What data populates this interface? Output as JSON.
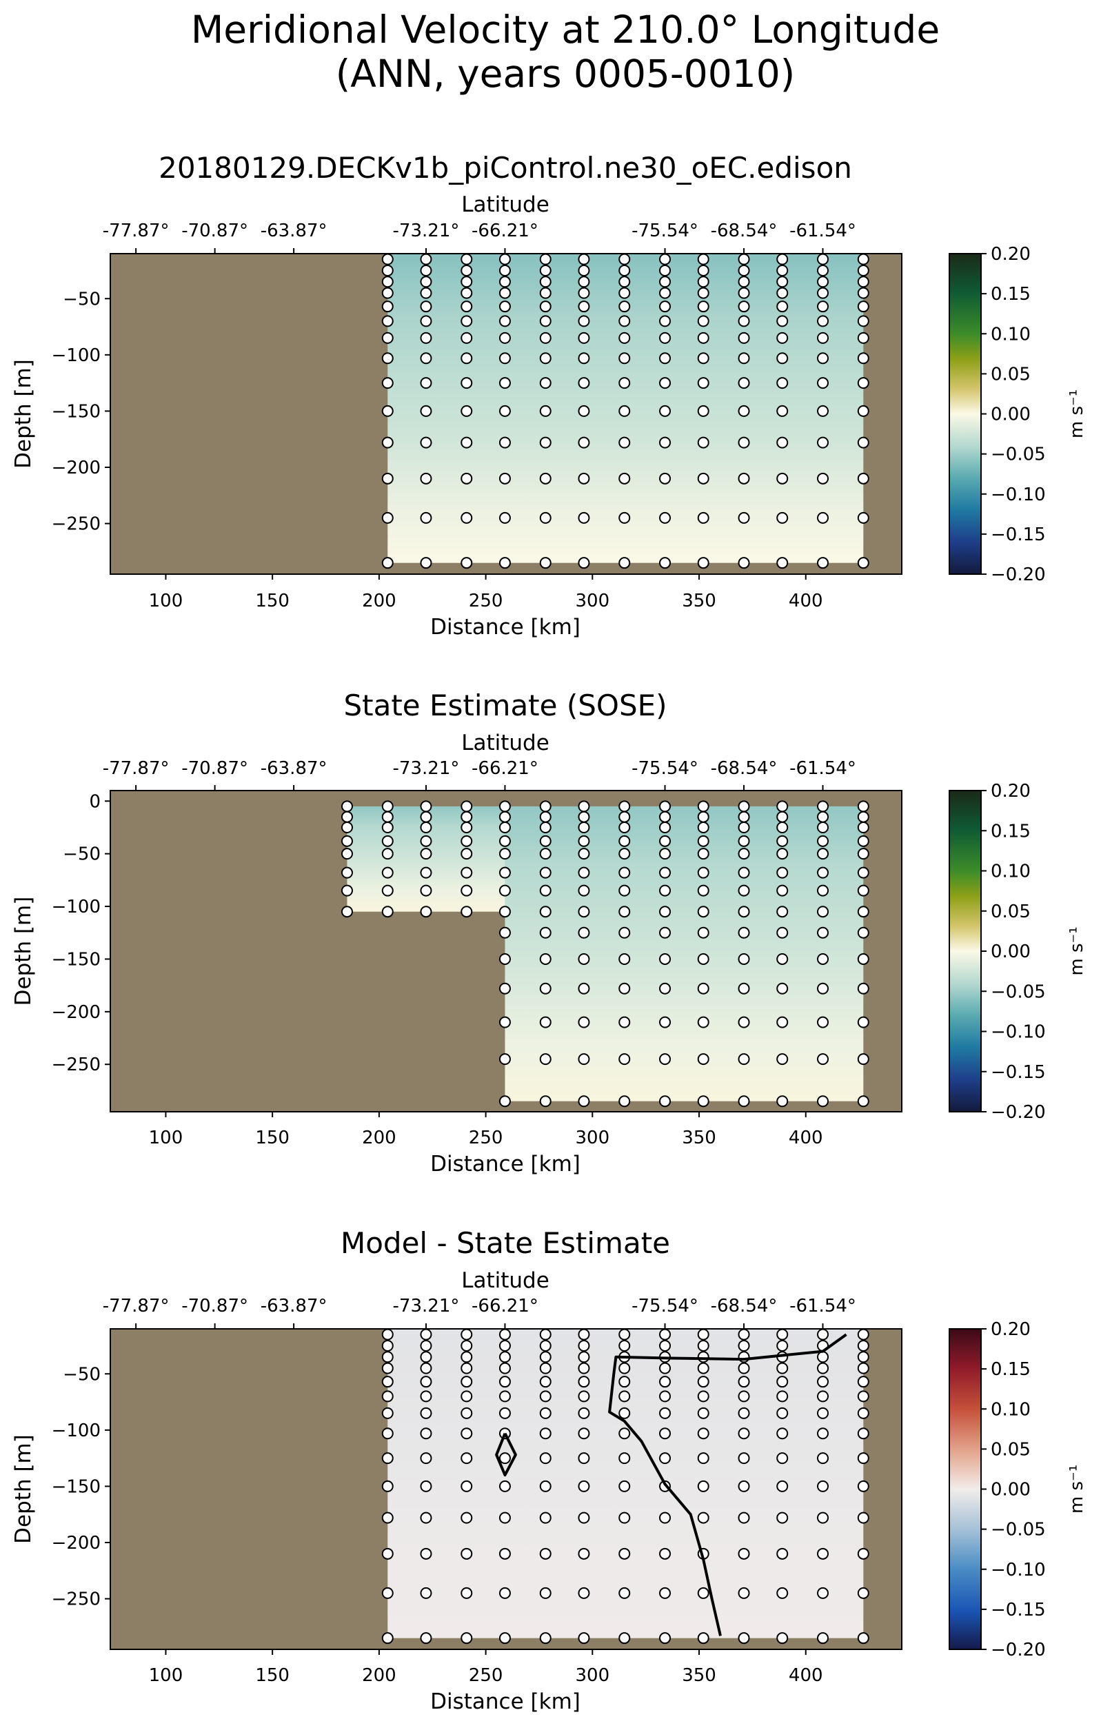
{
  "figure": {
    "title_line1": "Meridional Velocity at 210.0° Longitude",
    "title_line2": "(ANN, years 0005-0010)"
  },
  "colors": {
    "land": "#8c7f66",
    "marker_fill": "#ffffff",
    "marker_stroke": "#000000"
  },
  "chart_data": [
    {
      "type": "heatmap",
      "title": "20180129.DECKv1b_piControl.ne30_oEC.edison",
      "xlabel": "Distance [km]",
      "ylabel": "Depth [m]",
      "top_axis_label": "Latitude",
      "xlim": [
        74,
        445
      ],
      "ylim": [
        -295,
        -10
      ],
      "x_ticks": [
        100,
        150,
        200,
        250,
        300,
        350,
        400
      ],
      "y_ticks": [
        -50,
        -100,
        -150,
        -200,
        -250
      ],
      "top_ticks": [
        {
          "x": 86,
          "label": "-77.87°"
        },
        {
          "x": 123,
          "label": "-70.87°"
        },
        {
          "x": 160,
          "label": "-63.87°"
        },
        {
          "x": 222,
          "label": "-73.21°"
        },
        {
          "x": 259,
          "label": "-66.21°"
        },
        {
          "x": 334,
          "label": "-75.54°"
        },
        {
          "x": 371,
          "label": "-68.54°"
        },
        {
          "x": 408,
          "label": "-61.54°"
        }
      ],
      "station_x": [
        204,
        222,
        241,
        259,
        278,
        296,
        315,
        334,
        352,
        371,
        389,
        408,
        427
      ],
      "depth_levels": [
        -15,
        -25,
        -35,
        -45,
        -57,
        -70,
        -85,
        -103,
        -125,
        -150,
        -178,
        -210,
        -245,
        -285
      ],
      "ocean_regions": [
        {
          "x_range": [
            204,
            427
          ],
          "depth_range": [
            -10,
            -285
          ]
        }
      ],
      "values_top_to_bottom": [
        -0.06,
        -0.045,
        -0.035,
        -0.025,
        -0.01,
        0.0
      ],
      "contour_lines": [],
      "colorbar": {
        "label": "m s⁻¹",
        "cmap": "velocity",
        "ticks": [
          "0.20",
          "0.15",
          "0.10",
          "0.05",
          "0.00",
          "−0.05",
          "−0.10",
          "−0.15",
          "−0.20"
        ]
      }
    },
    {
      "type": "heatmap",
      "title": "State Estimate (SOSE)",
      "xlabel": "Distance [km]",
      "ylabel": "Depth [m]",
      "top_axis_label": "Latitude",
      "xlim": [
        74,
        445
      ],
      "ylim": [
        -295,
        10
      ],
      "x_ticks": [
        100,
        150,
        200,
        250,
        300,
        350,
        400
      ],
      "y_ticks": [
        0,
        -50,
        -100,
        -150,
        -200,
        -250
      ],
      "top_ticks": [
        {
          "x": 86,
          "label": "-77.87°"
        },
        {
          "x": 123,
          "label": "-70.87°"
        },
        {
          "x": 160,
          "label": "-63.87°"
        },
        {
          "x": 222,
          "label": "-73.21°"
        },
        {
          "x": 259,
          "label": "-66.21°"
        },
        {
          "x": 334,
          "label": "-75.54°"
        },
        {
          "x": 371,
          "label": "-68.54°"
        },
        {
          "x": 408,
          "label": "-61.54°"
        }
      ],
      "station_x": [
        185,
        204,
        222,
        241,
        259,
        278,
        296,
        315,
        334,
        352,
        371,
        389,
        408,
        427
      ],
      "depth_levels": [
        -5,
        -15,
        -25,
        -38,
        -50,
        -68,
        -85,
        -105,
        -125,
        -150,
        -178,
        -210,
        -245,
        -285
      ],
      "ocean_regions": [
        {
          "x_range": [
            185,
            259
          ],
          "depth_range": [
            -5,
            -105
          ]
        },
        {
          "x_range": [
            259,
            427
          ],
          "depth_range": [
            -5,
            -285
          ]
        }
      ],
      "values_top_to_bottom": [
        -0.055,
        -0.04,
        -0.03,
        -0.02,
        -0.008,
        0.002
      ],
      "contour_lines": [],
      "colorbar": {
        "label": "m s⁻¹",
        "cmap": "velocity",
        "ticks": [
          "0.20",
          "0.15",
          "0.10",
          "0.05",
          "0.00",
          "−0.05",
          "−0.10",
          "−0.15",
          "−0.20"
        ]
      }
    },
    {
      "type": "heatmap",
      "title": "Model - State Estimate",
      "xlabel": "Distance [km]",
      "ylabel": "Depth [m]",
      "top_axis_label": "Latitude",
      "xlim": [
        74,
        445
      ],
      "ylim": [
        -295,
        -10
      ],
      "x_ticks": [
        100,
        150,
        200,
        250,
        300,
        350,
        400
      ],
      "y_ticks": [
        -50,
        -100,
        -150,
        -200,
        -250
      ],
      "top_ticks": [
        {
          "x": 86,
          "label": "-77.87°"
        },
        {
          "x": 123,
          "label": "-70.87°"
        },
        {
          "x": 160,
          "label": "-63.87°"
        },
        {
          "x": 222,
          "label": "-73.21°"
        },
        {
          "x": 259,
          "label": "-66.21°"
        },
        {
          "x": 334,
          "label": "-75.54°"
        },
        {
          "x": 371,
          "label": "-68.54°"
        },
        {
          "x": 408,
          "label": "-61.54°"
        }
      ],
      "station_x": [
        204,
        222,
        241,
        259,
        278,
        296,
        315,
        334,
        352,
        371,
        389,
        408,
        427
      ],
      "depth_levels": [
        -15,
        -25,
        -35,
        -45,
        -57,
        -70,
        -85,
        -103,
        -125,
        -150,
        -178,
        -210,
        -245,
        -285
      ],
      "ocean_regions": [
        {
          "x_range": [
            204,
            427
          ],
          "depth_range": [
            -10,
            -285
          ]
        }
      ],
      "values_top_to_bottom": [
        -0.01,
        -0.008,
        -0.006,
        -0.004,
        -0.002,
        -0.001
      ],
      "contour_lines": [
        [
          [
            419,
            -15
          ],
          [
            408,
            -30
          ],
          [
            371,
            -37
          ],
          [
            334,
            -36
          ],
          [
            311,
            -35
          ],
          [
            310,
            -50
          ],
          [
            308,
            -84
          ],
          [
            315,
            -92
          ],
          [
            323,
            -110
          ],
          [
            334,
            -148
          ],
          [
            346,
            -175
          ],
          [
            352,
            -215
          ],
          [
            356,
            -250
          ],
          [
            360,
            -283
          ]
        ],
        [
          [
            259,
            -103
          ],
          [
            264,
            -122
          ],
          [
            259,
            -140
          ],
          [
            255,
            -122
          ],
          [
            259,
            -103
          ]
        ]
      ],
      "colorbar": {
        "label": "m s⁻¹",
        "cmap": "diff",
        "ticks": [
          "0.20",
          "0.15",
          "0.10",
          "0.05",
          "0.00",
          "−0.05",
          "−0.10",
          "−0.15",
          "−0.20"
        ]
      }
    }
  ]
}
